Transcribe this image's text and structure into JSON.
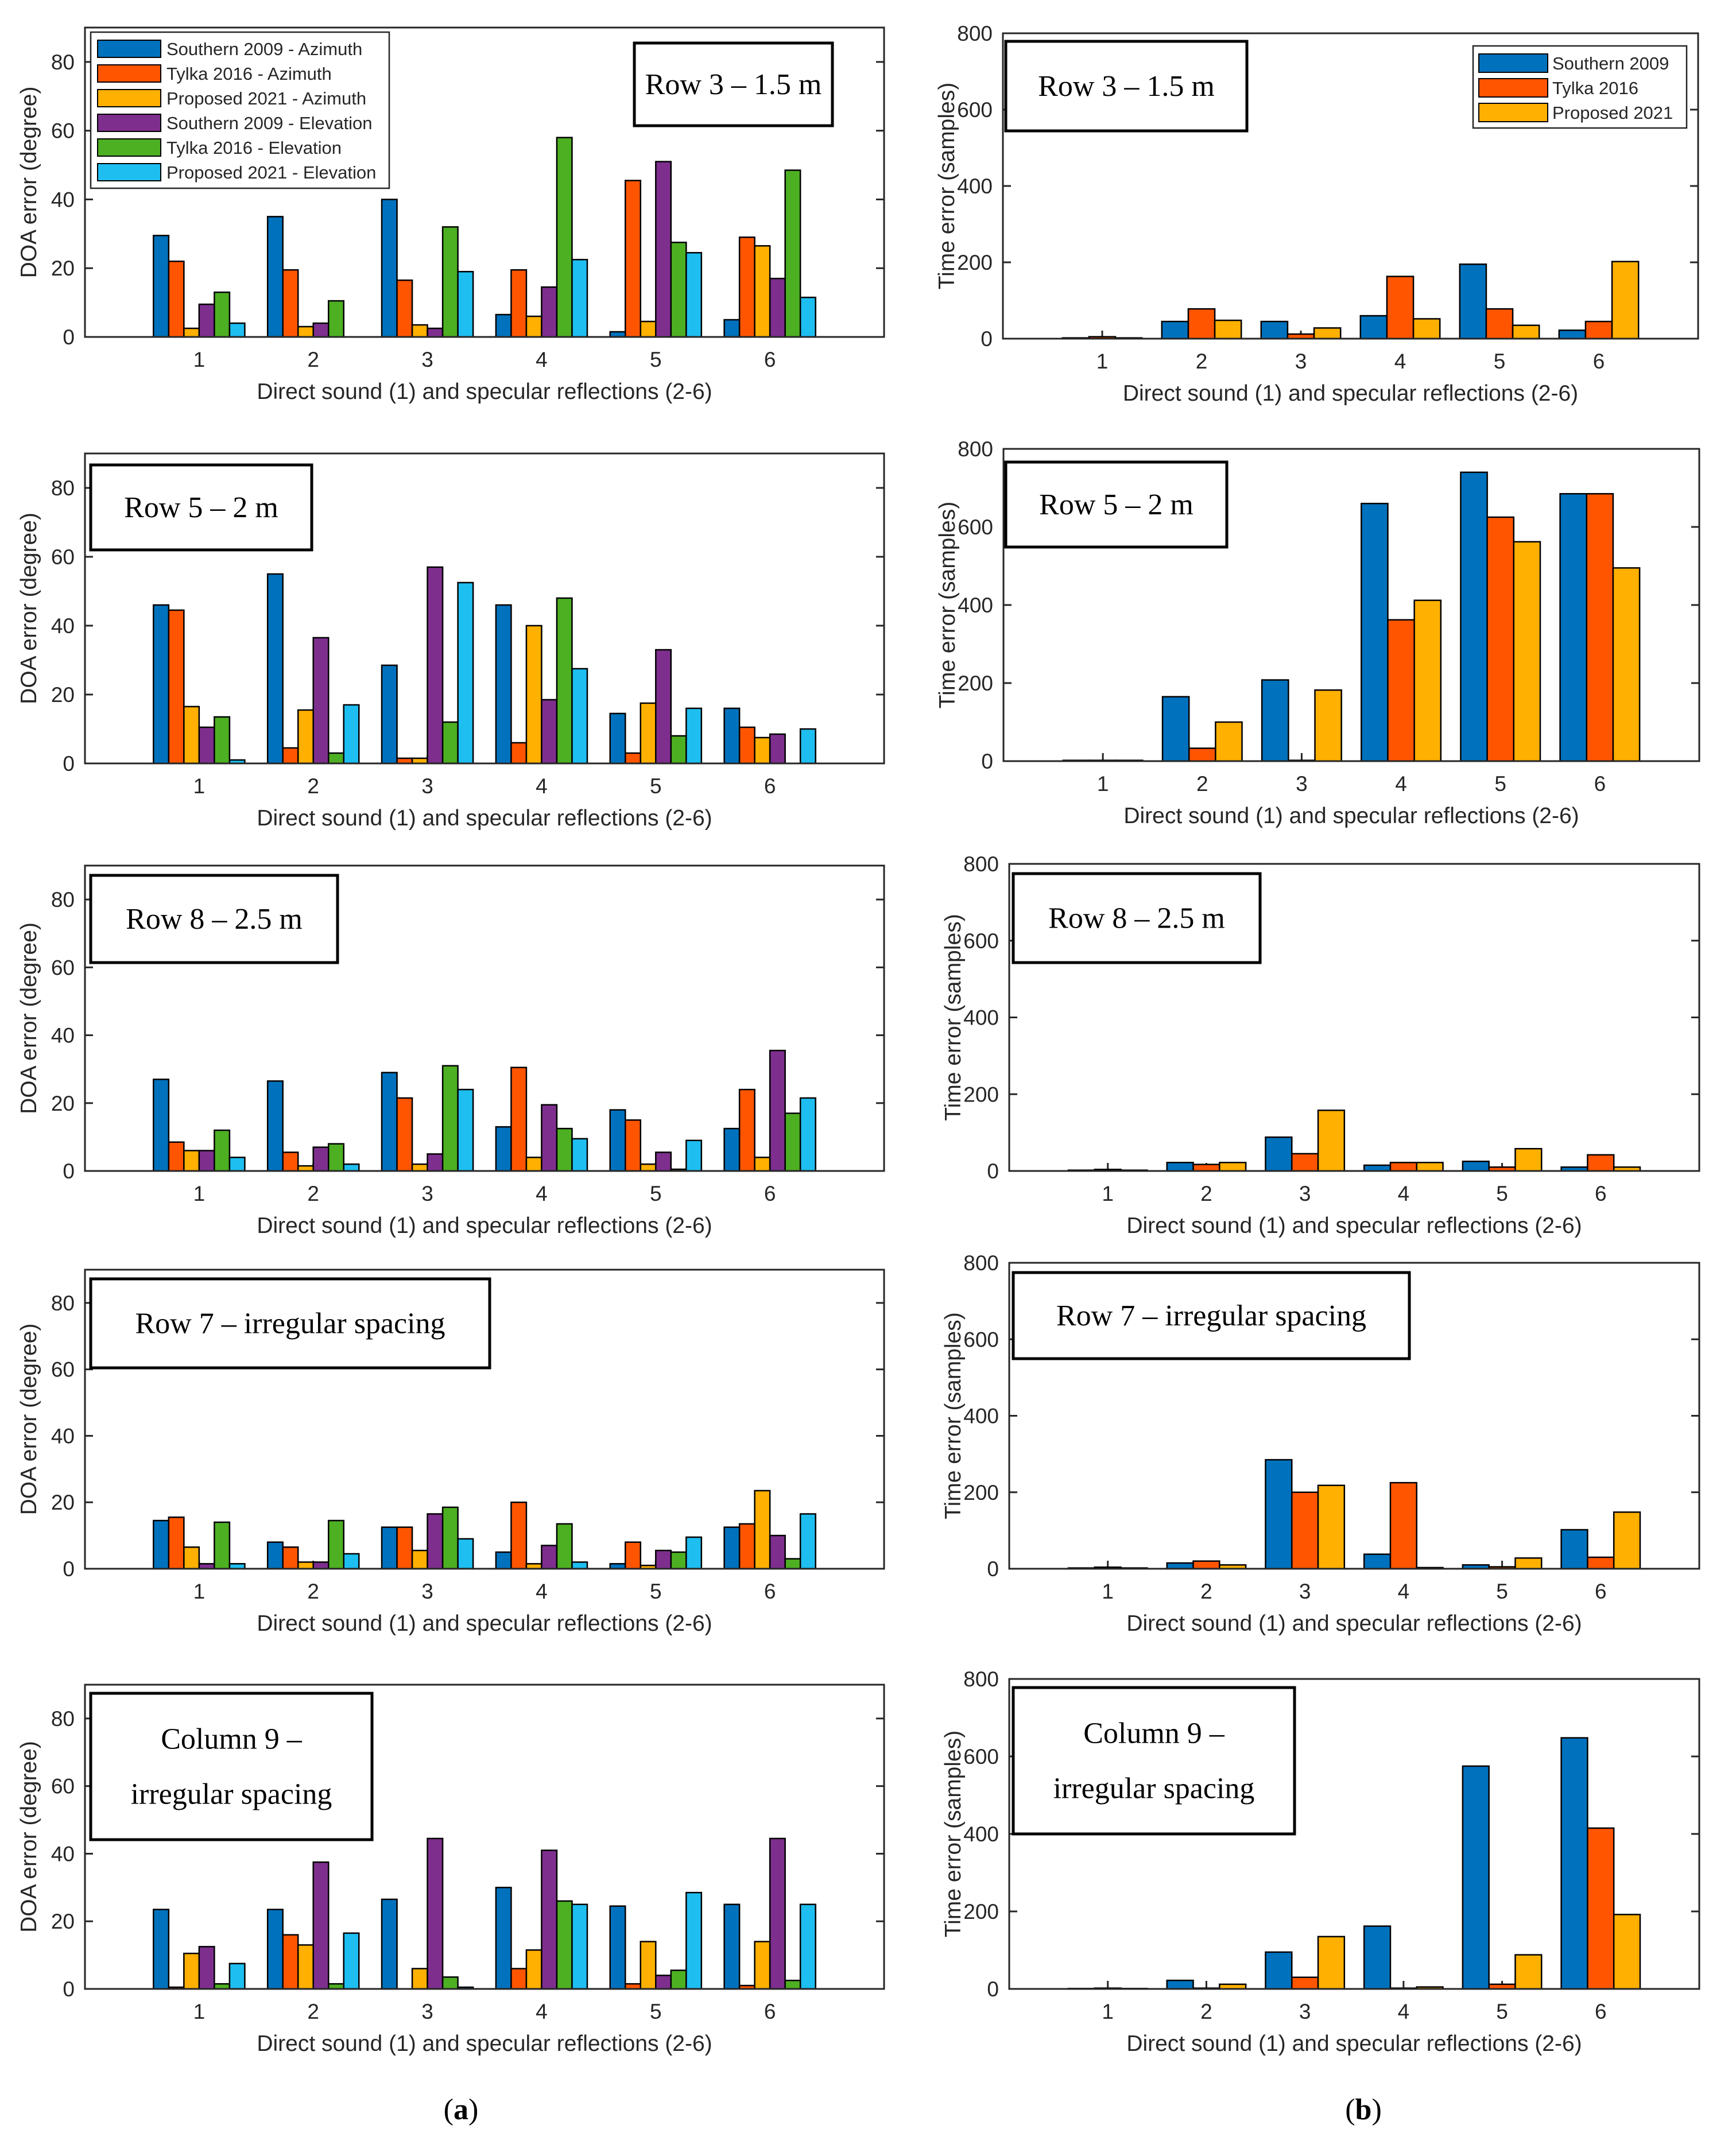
{
  "figure_labels": {
    "a": {
      "open": "(",
      "letter": "a",
      "close": ")"
    },
    "b": {
      "open": "(",
      "letter": "b",
      "close": ")"
    }
  },
  "colors": {
    "southern_2009": "#0072BD",
    "tylka_2016": "#FF5500",
    "proposed_2021": "#FFB000",
    "southern_2009_elev": "#7E2F8E",
    "tylka_2016_elev": "#4DAF22",
    "proposed_2021_elev": "#1EBEF0"
  },
  "chart_data": [
    {
      "id": "a-row3",
      "type": "bar",
      "title": "Row 3 – 1.5 m",
      "xlabel": "Direct sound (1) and specular reflections (2-6)",
      "ylabel": "DOA error (degree)",
      "categories": [
        "1",
        "2",
        "3",
        "4",
        "5",
        "6"
      ],
      "ylim": [
        0,
        90
      ],
      "yticks": [
        0,
        20,
        40,
        60,
        80
      ],
      "legend": "top-left",
      "series": [
        {
          "name": "Southern 2009 - Azimuth",
          "color": "#0072BD",
          "values": [
            29.5,
            35,
            40,
            6.5,
            1.5,
            5
          ]
        },
        {
          "name": "Tylka 2016 - Azimuth",
          "color": "#FF5500",
          "values": [
            22,
            19.5,
            16.5,
            19.5,
            45.5,
            29
          ]
        },
        {
          "name": "Proposed 2021 - Azimuth",
          "color": "#FFB000",
          "values": [
            2.5,
            3,
            3.5,
            6,
            4.5,
            26.5
          ]
        },
        {
          "name": "Southern 2009 - Elevation",
          "color": "#7E2F8E",
          "values": [
            9.5,
            4,
            2.5,
            14.5,
            51,
            17
          ]
        },
        {
          "name": "Tylka 2016 - Elevation",
          "color": "#4DAF22",
          "values": [
            13,
            10.5,
            32,
            58,
            27.5,
            48.5
          ]
        },
        {
          "name": "Proposed 2021 - Elevation",
          "color": "#1EBEF0",
          "values": [
            4,
            0,
            19,
            22.5,
            24.5,
            11.5
          ]
        }
      ]
    },
    {
      "id": "b-row3",
      "type": "bar",
      "title": "Row 3 – 1.5 m",
      "xlabel": "Direct sound (1) and specular reflections (2-6)",
      "ylabel": "Time error (samples)",
      "categories": [
        "1",
        "2",
        "3",
        "4",
        "5",
        "6"
      ],
      "ylim": [
        0,
        800
      ],
      "yticks": [
        0,
        200,
        400,
        600,
        800
      ],
      "legend": "top-right",
      "series": [
        {
          "name": "Southern 2009",
          "color": "#0072BD",
          "values": [
            2,
            45,
            45,
            60,
            195,
            22
          ]
        },
        {
          "name": "Tylka 2016",
          "color": "#FF5500",
          "values": [
            5,
            78,
            12,
            163,
            78,
            45
          ]
        },
        {
          "name": "Proposed 2021",
          "color": "#FFB000",
          "values": [
            2,
            48,
            28,
            52,
            35,
            202
          ]
        }
      ]
    },
    {
      "id": "a-row5",
      "type": "bar",
      "title": "Row 5 – 2 m",
      "xlabel": "Direct sound (1) and specular reflections (2-6)",
      "ylabel": "DOA error (degree)",
      "categories": [
        "1",
        "2",
        "3",
        "4",
        "5",
        "6"
      ],
      "ylim": [
        0,
        90
      ],
      "yticks": [
        0,
        20,
        40,
        60,
        80
      ],
      "series": [
        {
          "name": "Southern 2009 - Azimuth",
          "color": "#0072BD",
          "values": [
            46,
            55,
            28.5,
            46,
            14.5,
            16
          ]
        },
        {
          "name": "Tylka 2016 - Azimuth",
          "color": "#FF5500",
          "values": [
            44.5,
            4.5,
            1.5,
            6,
            3,
            10.5
          ]
        },
        {
          "name": "Proposed 2021 - Azimuth",
          "color": "#FFB000",
          "values": [
            16.5,
            15.5,
            1.5,
            40,
            17.5,
            7.5
          ]
        },
        {
          "name": "Southern 2009 - Elevation",
          "color": "#7E2F8E",
          "values": [
            10.5,
            36.5,
            57,
            18.5,
            33,
            8.5
          ]
        },
        {
          "name": "Tylka 2016 - Elevation",
          "color": "#4DAF22",
          "values": [
            13.5,
            3,
            12,
            48,
            8,
            0
          ]
        },
        {
          "name": "Proposed 2021 - Elevation",
          "color": "#1EBEF0",
          "values": [
            1,
            17,
            52.5,
            27.5,
            16,
            10
          ]
        }
      ]
    },
    {
      "id": "b-row5",
      "type": "bar",
      "title": "Row 5 – 2 m",
      "xlabel": "Direct sound (1) and specular reflections (2-6)",
      "ylabel": "Time error (samples)",
      "categories": [
        "1",
        "2",
        "3",
        "4",
        "5",
        "6"
      ],
      "ylim": [
        0,
        800
      ],
      "yticks": [
        0,
        200,
        400,
        600,
        800
      ],
      "series": [
        {
          "name": "Southern 2009",
          "color": "#0072BD",
          "values": [
            2,
            165,
            208,
            660,
            740,
            685
          ]
        },
        {
          "name": "Tylka 2016",
          "color": "#FF5500",
          "values": [
            2,
            33,
            2,
            362,
            625,
            685
          ]
        },
        {
          "name": "Proposed 2021",
          "color": "#FFB000",
          "values": [
            2,
            100,
            182,
            412,
            562,
            495
          ]
        }
      ]
    },
    {
      "id": "a-row8",
      "type": "bar",
      "title": "Row 8 – 2.5 m",
      "xlabel": "Direct sound (1) and specular reflections (2-6)",
      "ylabel": "DOA error (degree)",
      "categories": [
        "1",
        "2",
        "3",
        "4",
        "5",
        "6"
      ],
      "ylim": [
        0,
        90
      ],
      "yticks": [
        0,
        20,
        40,
        60,
        80
      ],
      "series": [
        {
          "name": "Southern 2009 - Azimuth",
          "color": "#0072BD",
          "values": [
            27,
            26.5,
            29,
            13,
            18,
            12.5
          ]
        },
        {
          "name": "Tylka 2016 - Azimuth",
          "color": "#FF5500",
          "values": [
            8.5,
            5.5,
            21.5,
            30.5,
            15,
            24
          ]
        },
        {
          "name": "Proposed 2021 - Azimuth",
          "color": "#FFB000",
          "values": [
            6,
            1.5,
            2,
            4,
            2,
            4
          ]
        },
        {
          "name": "Southern 2009 - Elevation",
          "color": "#7E2F8E",
          "values": [
            6,
            7,
            5,
            19.5,
            5.5,
            35.5
          ]
        },
        {
          "name": "Tylka 2016 - Elevation",
          "color": "#4DAF22",
          "values": [
            12,
            8,
            31,
            12.5,
            0.5,
            17
          ]
        },
        {
          "name": "Proposed 2021 - Elevation",
          "color": "#1EBEF0",
          "values": [
            4,
            2,
            24,
            9.5,
            9,
            21.5
          ]
        }
      ]
    },
    {
      "id": "b-row8",
      "type": "bar",
      "title": "Row 8 – 2.5 m",
      "xlabel": "Direct sound (1) and specular reflections (2-6)",
      "ylabel": "Time error (samples)",
      "categories": [
        "1",
        "2",
        "3",
        "4",
        "5",
        "6"
      ],
      "ylim": [
        0,
        800
      ],
      "yticks": [
        0,
        200,
        400,
        600,
        800
      ],
      "series": [
        {
          "name": "Southern 2009",
          "color": "#0072BD",
          "values": [
            2,
            22,
            88,
            15,
            25,
            10
          ]
        },
        {
          "name": "Tylka 2016",
          "color": "#FF5500",
          "values": [
            4,
            17,
            45,
            22,
            10,
            42
          ]
        },
        {
          "name": "Proposed 2021",
          "color": "#FFB000",
          "values": [
            2,
            22,
            158,
            22,
            58,
            10
          ]
        }
      ]
    },
    {
      "id": "a-row7",
      "type": "bar",
      "title": "Row 7 – irregular spacing",
      "xlabel": "Direct sound (1) and specular reflections (2-6)",
      "ylabel": "DOA error (degree)",
      "categories": [
        "1",
        "2",
        "3",
        "4",
        "5",
        "6"
      ],
      "ylim": [
        0,
        90
      ],
      "yticks": [
        0,
        20,
        40,
        60,
        80
      ],
      "series": [
        {
          "name": "Southern 2009 - Azimuth",
          "color": "#0072BD",
          "values": [
            14.5,
            8,
            12.5,
            5,
            1.5,
            12.5
          ]
        },
        {
          "name": "Tylka 2016 - Azimuth",
          "color": "#FF5500",
          "values": [
            15.5,
            6.5,
            12.5,
            20,
            8,
            13.5
          ]
        },
        {
          "name": "Proposed 2021 - Azimuth",
          "color": "#FFB000",
          "values": [
            6.5,
            2,
            5.5,
            1.5,
            1,
            23.5
          ]
        },
        {
          "name": "Southern 2009 - Elevation",
          "color": "#7E2F8E",
          "values": [
            1.5,
            2,
            16.5,
            7,
            5.5,
            10
          ]
        },
        {
          "name": "Tylka 2016 - Elevation",
          "color": "#4DAF22",
          "values": [
            14,
            14.5,
            18.5,
            13.5,
            5,
            3
          ]
        },
        {
          "name": "Proposed 2021 - Elevation",
          "color": "#1EBEF0",
          "values": [
            1.5,
            4.5,
            9,
            2,
            9.5,
            16.5
          ]
        }
      ]
    },
    {
      "id": "b-row7",
      "type": "bar",
      "title": "Row 7 – irregular spacing",
      "xlabel": "Direct sound (1) and specular reflections (2-6)",
      "ylabel": "Time error (samples)",
      "categories": [
        "1",
        "2",
        "3",
        "4",
        "5",
        "6"
      ],
      "ylim": [
        0,
        800
      ],
      "yticks": [
        0,
        200,
        400,
        600,
        800
      ],
      "series": [
        {
          "name": "Southern 2009",
          "color": "#0072BD",
          "values": [
            2,
            15,
            285,
            38,
            10,
            102
          ]
        },
        {
          "name": "Tylka 2016",
          "color": "#FF5500",
          "values": [
            4,
            20,
            200,
            225,
            5,
            30
          ]
        },
        {
          "name": "Proposed 2021",
          "color": "#FFB000",
          "values": [
            2,
            10,
            218,
            3,
            28,
            148
          ]
        }
      ]
    },
    {
      "id": "a-col9",
      "type": "bar",
      "title": "Column 9 – irregular spacing",
      "title_lines": [
        "Column 9 –",
        "irregular spacing"
      ],
      "xlabel": "Direct sound (1) and specular reflections (2-6)",
      "ylabel": "DOA error (degree)",
      "categories": [
        "1",
        "2",
        "3",
        "4",
        "5",
        "6"
      ],
      "ylim": [
        0,
        90
      ],
      "yticks": [
        0,
        20,
        40,
        60,
        80
      ],
      "series": [
        {
          "name": "Southern 2009 - Azimuth",
          "color": "#0072BD",
          "values": [
            23.5,
            23.5,
            26.5,
            30,
            24.5,
            25
          ]
        },
        {
          "name": "Tylka 2016 - Azimuth",
          "color": "#FF5500",
          "values": [
            0.5,
            16,
            0,
            6,
            1.5,
            1
          ]
        },
        {
          "name": "Proposed 2021 - Azimuth",
          "color": "#FFB000",
          "values": [
            10.5,
            13,
            6,
            11.5,
            14,
            14
          ]
        },
        {
          "name": "Southern 2009 - Elevation",
          "color": "#7E2F8E",
          "values": [
            12.5,
            37.5,
            44.5,
            41,
            4,
            44.5
          ]
        },
        {
          "name": "Tylka 2016 - Elevation",
          "color": "#4DAF22",
          "values": [
            1.5,
            1.5,
            3.5,
            26,
            5.5,
            2.5
          ]
        },
        {
          "name": "Proposed 2021 - Elevation",
          "color": "#1EBEF0",
          "values": [
            7.5,
            16.5,
            0.5,
            25,
            28.5,
            25
          ]
        }
      ]
    },
    {
      "id": "b-col9",
      "type": "bar",
      "title": "Column 9 – irregular spacing",
      "title_lines": [
        "Column 9 –",
        "irregular spacing"
      ],
      "xlabel": "Direct sound (1) and specular reflections (2-6)",
      "ylabel": "Time error (samples)",
      "categories": [
        "1",
        "2",
        "3",
        "4",
        "5",
        "6"
      ],
      "ylim": [
        0,
        800
      ],
      "yticks": [
        0,
        200,
        400,
        600,
        800
      ],
      "series": [
        {
          "name": "Southern 2009",
          "color": "#0072BD",
          "values": [
            1,
            22,
            95,
            162,
            575,
            648
          ]
        },
        {
          "name": "Tylka 2016",
          "color": "#FF5500",
          "values": [
            2,
            2,
            30,
            2,
            12,
            415
          ]
        },
        {
          "name": "Proposed 2021",
          "color": "#FFB000",
          "values": [
            1,
            12,
            135,
            5,
            88,
            192
          ]
        }
      ]
    }
  ]
}
